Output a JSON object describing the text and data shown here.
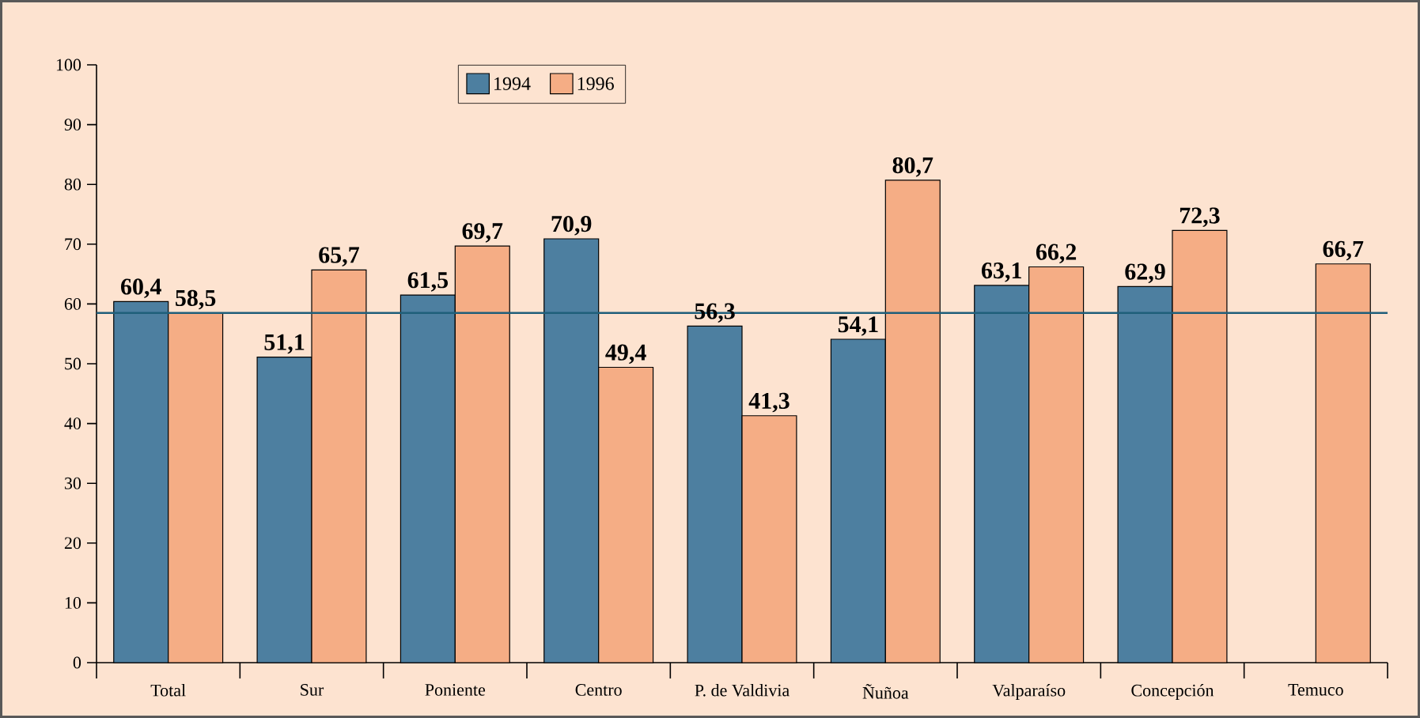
{
  "chart_data": {
    "type": "bar",
    "categories": [
      "Total",
      "Sur",
      "Poniente",
      "Centro",
      "P. de Valdivia",
      "Ñuñoa",
      "Valparaíso",
      "Concepción",
      "Temuco"
    ],
    "series": [
      {
        "name": "1994",
        "color": "#4d7fa0",
        "values": [
          60.4,
          51.1,
          61.5,
          70.9,
          56.3,
          54.1,
          63.1,
          62.9,
          null
        ],
        "value_labels": [
          "60,4",
          "51,1",
          "61,5",
          "70,9",
          "56,3",
          "54,1",
          "63,1",
          "62,9",
          null
        ]
      },
      {
        "name": "1996",
        "color": "#f5ad85",
        "values": [
          58.5,
          65.7,
          69.7,
          49.4,
          41.3,
          80.7,
          66.2,
          72.3,
          66.7
        ],
        "value_labels": [
          "58,5",
          "65,7",
          "69,7",
          "49,4",
          "41,3",
          "80,7",
          "66,2",
          "72,3",
          "66,7"
        ]
      }
    ],
    "ylim": [
      0,
      100
    ],
    "yticks": [
      0,
      10,
      20,
      30,
      40,
      50,
      60,
      70,
      80,
      90,
      100
    ],
    "ref_lines": [
      {
        "axis": "y",
        "value": 58.5,
        "label": null,
        "color": "#1f5f7a",
        "line_style": "solid"
      }
    ],
    "legend": "top",
    "grid": false
  }
}
